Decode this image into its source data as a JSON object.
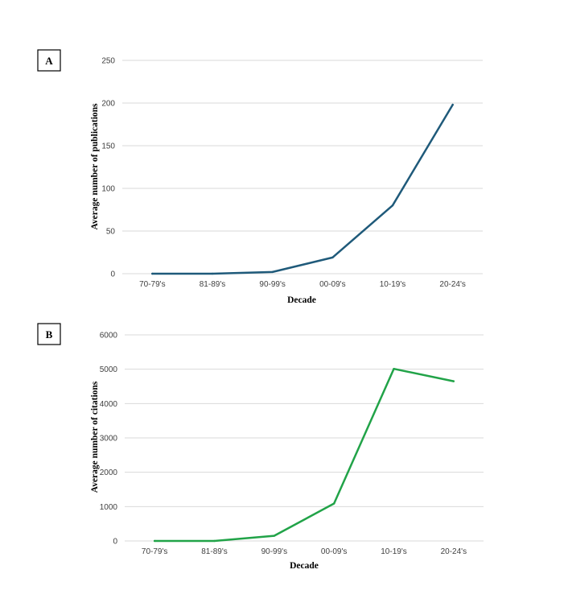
{
  "chart_data": [
    {
      "type": "line",
      "panel_label": "A",
      "categories": [
        "70-79's",
        "81-89's",
        "90-99's",
        "00-09's",
        "10-19's",
        "20-24's"
      ],
      "series": [
        {
          "values": [
            0,
            0,
            2,
            19,
            80,
            198
          ]
        }
      ],
      "xlabel": "Decade",
      "ylabel": "Average number of publications",
      "ylim": [
        0,
        250
      ],
      "yticks": [
        "0",
        "50",
        "100",
        "150",
        "200",
        "250"
      ],
      "grid": true,
      "color": "#1f5a7a"
    },
    {
      "type": "line",
      "panel_label": "B",
      "categories": [
        "70-79's",
        "81-89's",
        "90-99's",
        "00-09's",
        "10-19's",
        "20-24's"
      ],
      "series": [
        {
          "values": [
            0,
            0,
            150,
            1090,
            5010,
            4650
          ]
        }
      ],
      "xlabel": "Decade",
      "ylabel": "Average number of citations",
      "ylim": [
        0,
        6000
      ],
      "yticks": [
        "0",
        "1000",
        "2000",
        "3000",
        "4000",
        "5000",
        "6000"
      ],
      "grid": true,
      "color": "#21a348"
    }
  ]
}
